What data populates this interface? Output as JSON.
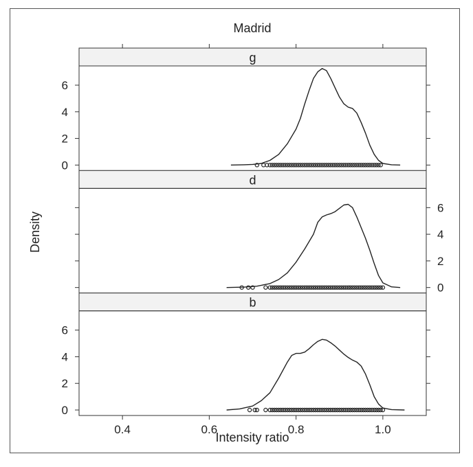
{
  "chart_data": {
    "type": "area",
    "title": "Madrid",
    "xlabel": "Intensity ratio",
    "ylabel": "Density",
    "xlim": [
      0.3,
      1.1
    ],
    "ylim": [
      -0.5,
      7.6
    ],
    "x_ticks": [
      0.4,
      0.6,
      0.8,
      1.0
    ],
    "x_tick_labels": [
      "0.4",
      "0.6",
      "0.8",
      "1.0"
    ],
    "y_ticks": [
      0,
      2,
      4,
      6
    ],
    "y_tick_labels": [
      "0",
      "2",
      "4",
      "6"
    ],
    "panels": [
      {
        "strip": "g",
        "y_axis_side": "left",
        "density": [
          [
            0.65,
            0.0
          ],
          [
            0.68,
            0.02
          ],
          [
            0.7,
            0.05
          ],
          [
            0.72,
            0.12
          ],
          [
            0.74,
            0.35
          ],
          [
            0.76,
            0.8
          ],
          [
            0.78,
            1.6
          ],
          [
            0.8,
            2.7
          ],
          [
            0.81,
            3.5
          ],
          [
            0.82,
            4.6
          ],
          [
            0.83,
            5.6
          ],
          [
            0.84,
            6.5
          ],
          [
            0.85,
            7.0
          ],
          [
            0.86,
            7.25
          ],
          [
            0.87,
            7.1
          ],
          [
            0.88,
            6.5
          ],
          [
            0.89,
            5.8
          ],
          [
            0.9,
            5.1
          ],
          [
            0.91,
            4.6
          ],
          [
            0.92,
            4.35
          ],
          [
            0.93,
            4.25
          ],
          [
            0.94,
            3.9
          ],
          [
            0.95,
            3.2
          ],
          [
            0.96,
            2.4
          ],
          [
            0.97,
            1.5
          ],
          [
            0.98,
            0.8
          ],
          [
            0.99,
            0.35
          ],
          [
            1.0,
            0.12
          ],
          [
            1.02,
            0.02
          ],
          [
            1.04,
            0.0
          ]
        ],
        "rug": [
          0.71,
          0.725,
          0.733,
          0.74,
          0.745,
          0.75,
          0.755,
          0.76,
          0.765,
          0.77,
          0.775,
          0.78,
          0.785,
          0.79,
          0.795,
          0.8,
          0.805,
          0.81,
          0.815,
          0.82,
          0.825,
          0.83,
          0.835,
          0.84,
          0.845,
          0.85,
          0.855,
          0.86,
          0.865,
          0.87,
          0.875,
          0.88,
          0.885,
          0.89,
          0.895,
          0.9,
          0.905,
          0.91,
          0.915,
          0.92,
          0.925,
          0.93,
          0.935,
          0.94,
          0.945,
          0.95,
          0.955,
          0.96,
          0.965,
          0.97,
          0.975,
          0.98,
          0.985,
          0.99,
          0.995
        ]
      },
      {
        "strip": "d",
        "y_axis_side": "right",
        "density": [
          [
            0.64,
            0.0
          ],
          [
            0.68,
            0.03
          ],
          [
            0.71,
            0.1
          ],
          [
            0.74,
            0.3
          ],
          [
            0.76,
            0.6
          ],
          [
            0.78,
            1.1
          ],
          [
            0.8,
            1.9
          ],
          [
            0.82,
            2.9
          ],
          [
            0.84,
            4.0
          ],
          [
            0.85,
            4.9
          ],
          [
            0.86,
            5.3
          ],
          [
            0.87,
            5.45
          ],
          [
            0.88,
            5.55
          ],
          [
            0.89,
            5.7
          ],
          [
            0.9,
            5.95
          ],
          [
            0.91,
            6.2
          ],
          [
            0.92,
            6.25
          ],
          [
            0.93,
            6.0
          ],
          [
            0.94,
            5.3
          ],
          [
            0.95,
            4.5
          ],
          [
            0.96,
            3.7
          ],
          [
            0.97,
            2.8
          ],
          [
            0.98,
            1.8
          ],
          [
            0.99,
            0.9
          ],
          [
            1.0,
            0.35
          ],
          [
            1.02,
            0.05
          ],
          [
            1.04,
            0.0
          ]
        ],
        "rug": [
          0.675,
          0.69,
          0.7,
          0.73,
          0.74,
          0.745,
          0.75,
          0.755,
          0.76,
          0.765,
          0.77,
          0.775,
          0.78,
          0.785,
          0.79,
          0.795,
          0.8,
          0.805,
          0.81,
          0.815,
          0.82,
          0.825,
          0.83,
          0.835,
          0.84,
          0.845,
          0.85,
          0.855,
          0.86,
          0.865,
          0.87,
          0.875,
          0.88,
          0.885,
          0.89,
          0.895,
          0.9,
          0.905,
          0.91,
          0.915,
          0.92,
          0.925,
          0.93,
          0.935,
          0.94,
          0.945,
          0.95,
          0.955,
          0.96,
          0.965,
          0.97,
          0.975,
          0.98,
          0.985,
          0.99,
          0.995,
          1.0
        ]
      },
      {
        "strip": "b",
        "y_axis_side": "left",
        "density": [
          [
            0.64,
            0.0
          ],
          [
            0.67,
            0.08
          ],
          [
            0.7,
            0.3
          ],
          [
            0.72,
            0.7
          ],
          [
            0.74,
            1.3
          ],
          [
            0.76,
            2.4
          ],
          [
            0.78,
            3.6
          ],
          [
            0.79,
            4.1
          ],
          [
            0.8,
            4.25
          ],
          [
            0.81,
            4.25
          ],
          [
            0.82,
            4.35
          ],
          [
            0.83,
            4.6
          ],
          [
            0.84,
            4.9
          ],
          [
            0.85,
            5.15
          ],
          [
            0.86,
            5.3
          ],
          [
            0.87,
            5.25
          ],
          [
            0.88,
            5.05
          ],
          [
            0.89,
            4.8
          ],
          [
            0.9,
            4.5
          ],
          [
            0.91,
            4.2
          ],
          [
            0.92,
            3.95
          ],
          [
            0.93,
            3.75
          ],
          [
            0.94,
            3.6
          ],
          [
            0.95,
            3.3
          ],
          [
            0.96,
            2.7
          ],
          [
            0.97,
            1.9
          ],
          [
            0.98,
            1.0
          ],
          [
            0.99,
            0.45
          ],
          [
            1.0,
            0.15
          ],
          [
            1.02,
            0.03
          ],
          [
            1.05,
            0.0
          ]
        ],
        "rug": [
          0.693,
          0.705,
          0.71,
          0.73,
          0.74,
          0.745,
          0.75,
          0.755,
          0.76,
          0.765,
          0.77,
          0.775,
          0.78,
          0.785,
          0.79,
          0.795,
          0.8,
          0.805,
          0.81,
          0.815,
          0.82,
          0.825,
          0.83,
          0.835,
          0.84,
          0.845,
          0.85,
          0.855,
          0.86,
          0.865,
          0.87,
          0.875,
          0.88,
          0.885,
          0.89,
          0.895,
          0.9,
          0.905,
          0.91,
          0.915,
          0.92,
          0.925,
          0.93,
          0.935,
          0.94,
          0.945,
          0.95,
          0.955,
          0.96,
          0.965,
          0.97,
          0.975,
          0.98,
          0.985,
          0.99,
          0.995,
          1.0
        ]
      }
    ],
    "colors": {
      "line": "#222222",
      "strip_fill": "#f2f2f2",
      "frame": "#555555"
    }
  }
}
